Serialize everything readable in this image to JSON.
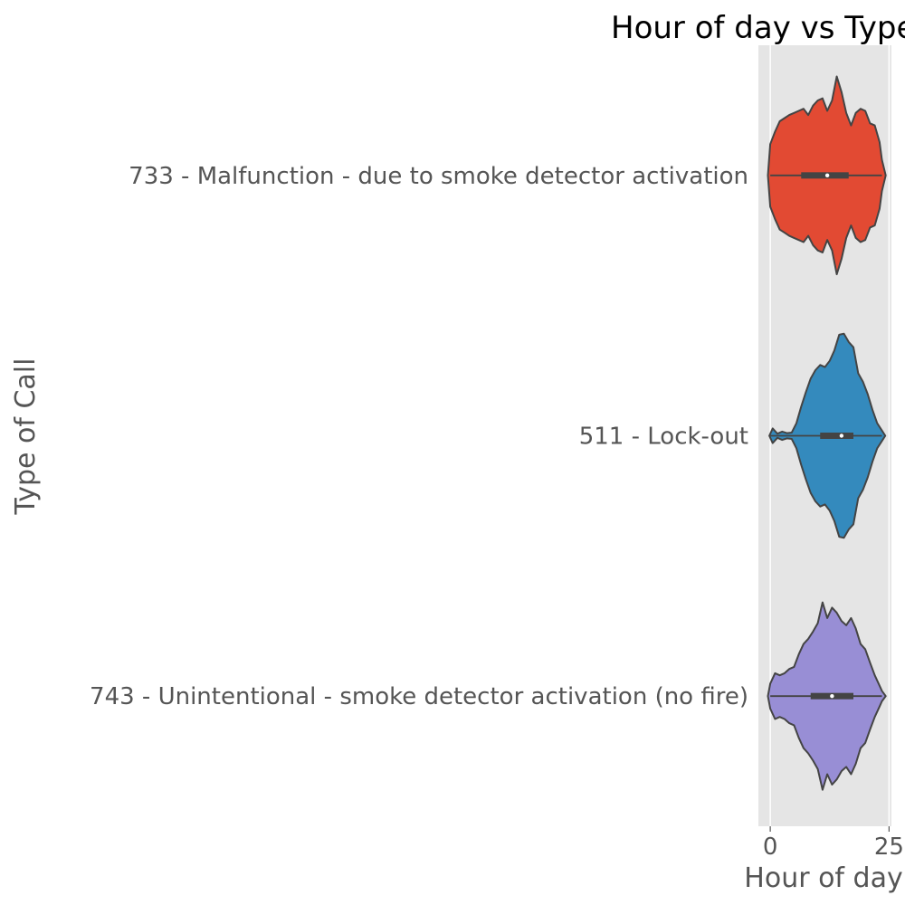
{
  "chart_data": {
    "type": "violin",
    "orientation": "horizontal",
    "title": "Hour of day vs Type of Call",
    "xlabel": "Hour of day",
    "ylabel": "Type of Call",
    "xlim": [
      -2.5,
      25.5
    ],
    "xticks": [
      0,
      25
    ],
    "xtick_labels": [
      "0",
      "25"
    ],
    "grid": true,
    "categories": [
      "733 - Malfunction - due to smoke detector activation",
      "511 - Lock-out",
      "743 - Unintentional - smoke detector activation (no fire)"
    ],
    "series": [
      {
        "category": "733 - Malfunction - due to smoke detector activation",
        "color": "#E24A33",
        "box": {
          "min": 0,
          "q1": 6.5,
          "median": 12,
          "q3": 16.5,
          "max": 23.5
        },
        "density_x": [
          -0.5,
          0,
          1,
          2,
          3,
          4,
          5,
          6,
          7,
          8,
          9,
          10,
          11,
          12,
          13,
          14,
          15,
          16,
          17,
          18,
          19,
          20,
          21,
          22,
          23,
          23.5,
          24.3
        ],
        "density_w": [
          0.0,
          0.3,
          0.42,
          0.52,
          0.55,
          0.58,
          0.6,
          0.62,
          0.64,
          0.58,
          0.67,
          0.72,
          0.74,
          0.62,
          0.72,
          0.95,
          0.8,
          0.6,
          0.48,
          0.6,
          0.64,
          0.62,
          0.5,
          0.48,
          0.32,
          0.15,
          0.0
        ]
      },
      {
        "category": "511 - Lock-out",
        "color": "#348ABD",
        "box": {
          "min": 0,
          "q1": 10.5,
          "median": 15,
          "q3": 17.5,
          "max": 23.5
        },
        "density_x": [
          -0.2,
          0.5,
          1.5,
          2.5,
          3.5,
          4.5,
          5.5,
          6.5,
          7.5,
          8.5,
          9.5,
          10.5,
          11.5,
          12.5,
          13.5,
          14.5,
          15.5,
          16.5,
          17.5,
          18.5,
          19.5,
          20.5,
          21.5,
          22.5,
          23.5,
          24.2
        ],
        "density_w": [
          0.0,
          0.07,
          0.02,
          0.04,
          0.025,
          0.03,
          0.12,
          0.28,
          0.42,
          0.55,
          0.63,
          0.68,
          0.66,
          0.72,
          0.82,
          0.97,
          0.98,
          0.9,
          0.85,
          0.6,
          0.52,
          0.4,
          0.25,
          0.12,
          0.05,
          0.0
        ]
      },
      {
        "category": "743 - Unintentional - smoke detector activation (no fire)",
        "color": "#988ED5",
        "box": {
          "min": 0,
          "q1": 8.5,
          "median": 13,
          "q3": 17.5,
          "max": 23.5
        },
        "density_x": [
          -0.5,
          0,
          1,
          2,
          3,
          4,
          5,
          6,
          7,
          8,
          9,
          10,
          11,
          12,
          13,
          14,
          15,
          16,
          17,
          18,
          19,
          20,
          21,
          22,
          23,
          23.5,
          24.3
        ],
        "density_w": [
          0.0,
          0.12,
          0.22,
          0.2,
          0.22,
          0.26,
          0.28,
          0.4,
          0.5,
          0.55,
          0.62,
          0.7,
          0.9,
          0.75,
          0.85,
          0.8,
          0.72,
          0.68,
          0.75,
          0.65,
          0.5,
          0.45,
          0.32,
          0.2,
          0.1,
          0.05,
          0.0
        ]
      }
    ]
  }
}
